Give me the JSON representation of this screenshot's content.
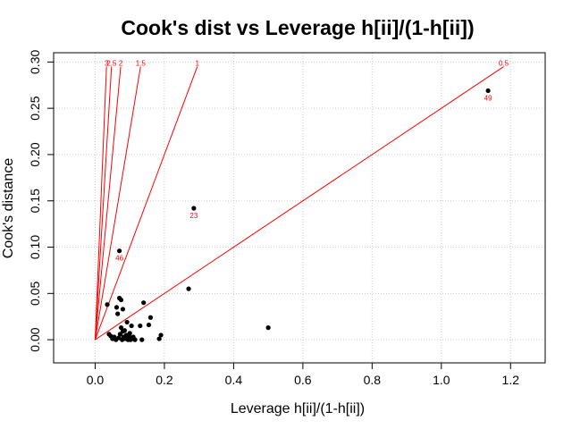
{
  "chart_data": {
    "type": "scatter",
    "title": "Cook's dist vs Leverage h[ii]/(1-h[ii])",
    "xlabel": "Leverage h[ii]/(1-h[ii])",
    "ylabel": "Cook's distance",
    "xlim": [
      -0.12,
      1.3
    ],
    "ylim": [
      -0.025,
      0.31
    ],
    "x_ticks": [
      "0.0",
      "0.2",
      "0.4",
      "0.6",
      "0.8",
      "1.0",
      "1.2"
    ],
    "y_ticks": [
      "0.00",
      "0.05",
      "0.10",
      "0.15",
      "0.20",
      "0.25",
      "0.30"
    ],
    "grid": true,
    "points": [
      {
        "x": 0.04,
        "y": 0.006
      },
      {
        "x": 0.045,
        "y": 0.004
      },
      {
        "x": 0.05,
        "y": 0.001
      },
      {
        "x": 0.055,
        "y": 0.003
      },
      {
        "x": 0.06,
        "y": 0.0
      },
      {
        "x": 0.062,
        "y": 0.035
      },
      {
        "x": 0.065,
        "y": 0.028
      },
      {
        "x": 0.068,
        "y": 0.002
      },
      {
        "x": 0.07,
        "y": 0.045
      },
      {
        "x": 0.072,
        "y": 0.006
      },
      {
        "x": 0.075,
        "y": 0.043
      },
      {
        "x": 0.075,
        "y": 0.013
      },
      {
        "x": 0.078,
        "y": 0.0
      },
      {
        "x": 0.08,
        "y": 0.009
      },
      {
        "x": 0.08,
        "y": 0.033
      },
      {
        "x": 0.082,
        "y": 0.003
      },
      {
        "x": 0.085,
        "y": 0.01
      },
      {
        "x": 0.088,
        "y": 0.001
      },
      {
        "x": 0.09,
        "y": 0.005
      },
      {
        "x": 0.092,
        "y": 0.019
      },
      {
        "x": 0.095,
        "y": 0.0
      },
      {
        "x": 0.098,
        "y": 0.004
      },
      {
        "x": 0.1,
        "y": 0.007
      },
      {
        "x": 0.102,
        "y": 0.0
      },
      {
        "x": 0.105,
        "y": 0.015
      },
      {
        "x": 0.108,
        "y": 0.001
      },
      {
        "x": 0.11,
        "y": 0.003
      },
      {
        "x": 0.115,
        "y": 0.0
      },
      {
        "x": 0.035,
        "y": 0.038
      },
      {
        "x": 0.13,
        "y": 0.015
      },
      {
        "x": 0.135,
        "y": 0.0
      },
      {
        "x": 0.14,
        "y": 0.04
      },
      {
        "x": 0.155,
        "y": 0.016
      },
      {
        "x": 0.16,
        "y": 0.024
      },
      {
        "x": 0.185,
        "y": 0.001
      },
      {
        "x": 0.19,
        "y": 0.005
      },
      {
        "x": 0.27,
        "y": 0.055
      },
      {
        "x": 0.5,
        "y": 0.013
      },
      {
        "x": 0.07,
        "y": 0.096,
        "label": "46"
      },
      {
        "x": 0.285,
        "y": 0.142,
        "label": "23"
      },
      {
        "x": 1.135,
        "y": 0.269,
        "label": "49"
      }
    ],
    "reference_lines": [
      {
        "label": "0.5",
        "slope": 0.25
      },
      {
        "label": "1",
        "slope": 1.0
      },
      {
        "label": "1.5",
        "slope": 2.25
      },
      {
        "label": "2",
        "slope": 4.0
      },
      {
        "label": "2.5",
        "slope": 6.25
      },
      {
        "label": "3",
        "slope": 9.0
      }
    ],
    "colors": {
      "points": "#000000",
      "reference_lines": "#ff0000",
      "point_labels": "#ff0000",
      "grid": "#cccccc"
    }
  }
}
